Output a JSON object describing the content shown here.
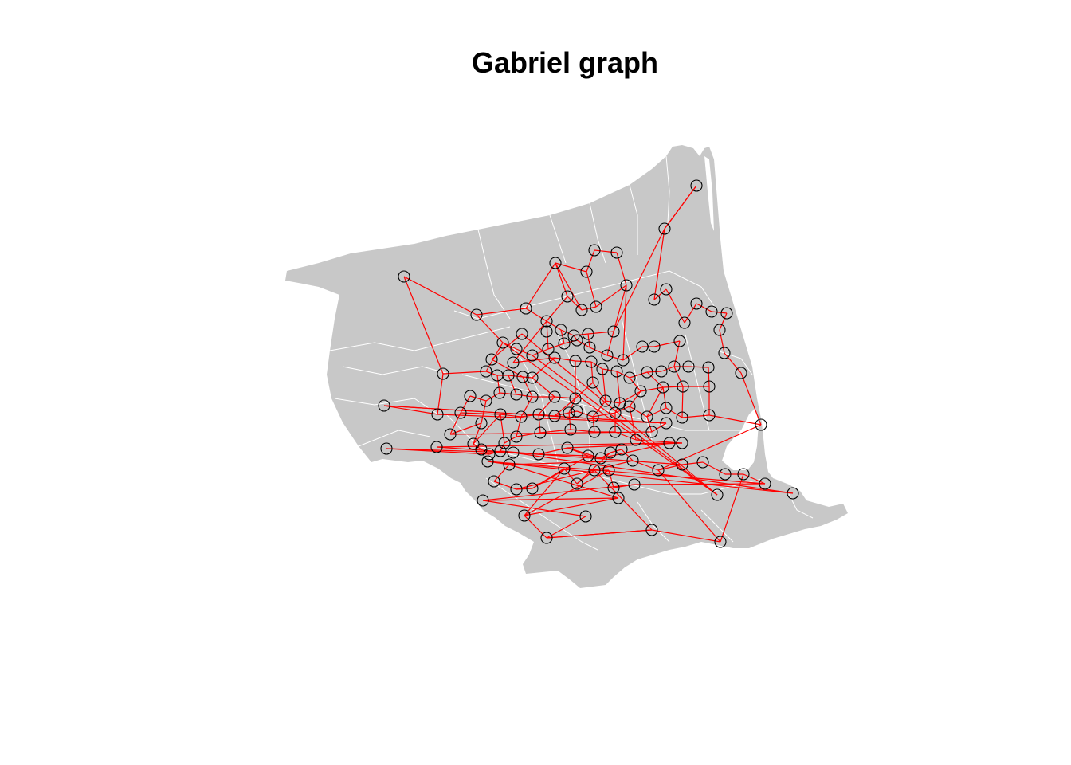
{
  "title": "Gabriel graph",
  "colors": {
    "land": "#c8c8c8",
    "boundary": "#ffffff",
    "edge": "#ff0000",
    "node": "#000000",
    "background": "#ffffff"
  }
}
